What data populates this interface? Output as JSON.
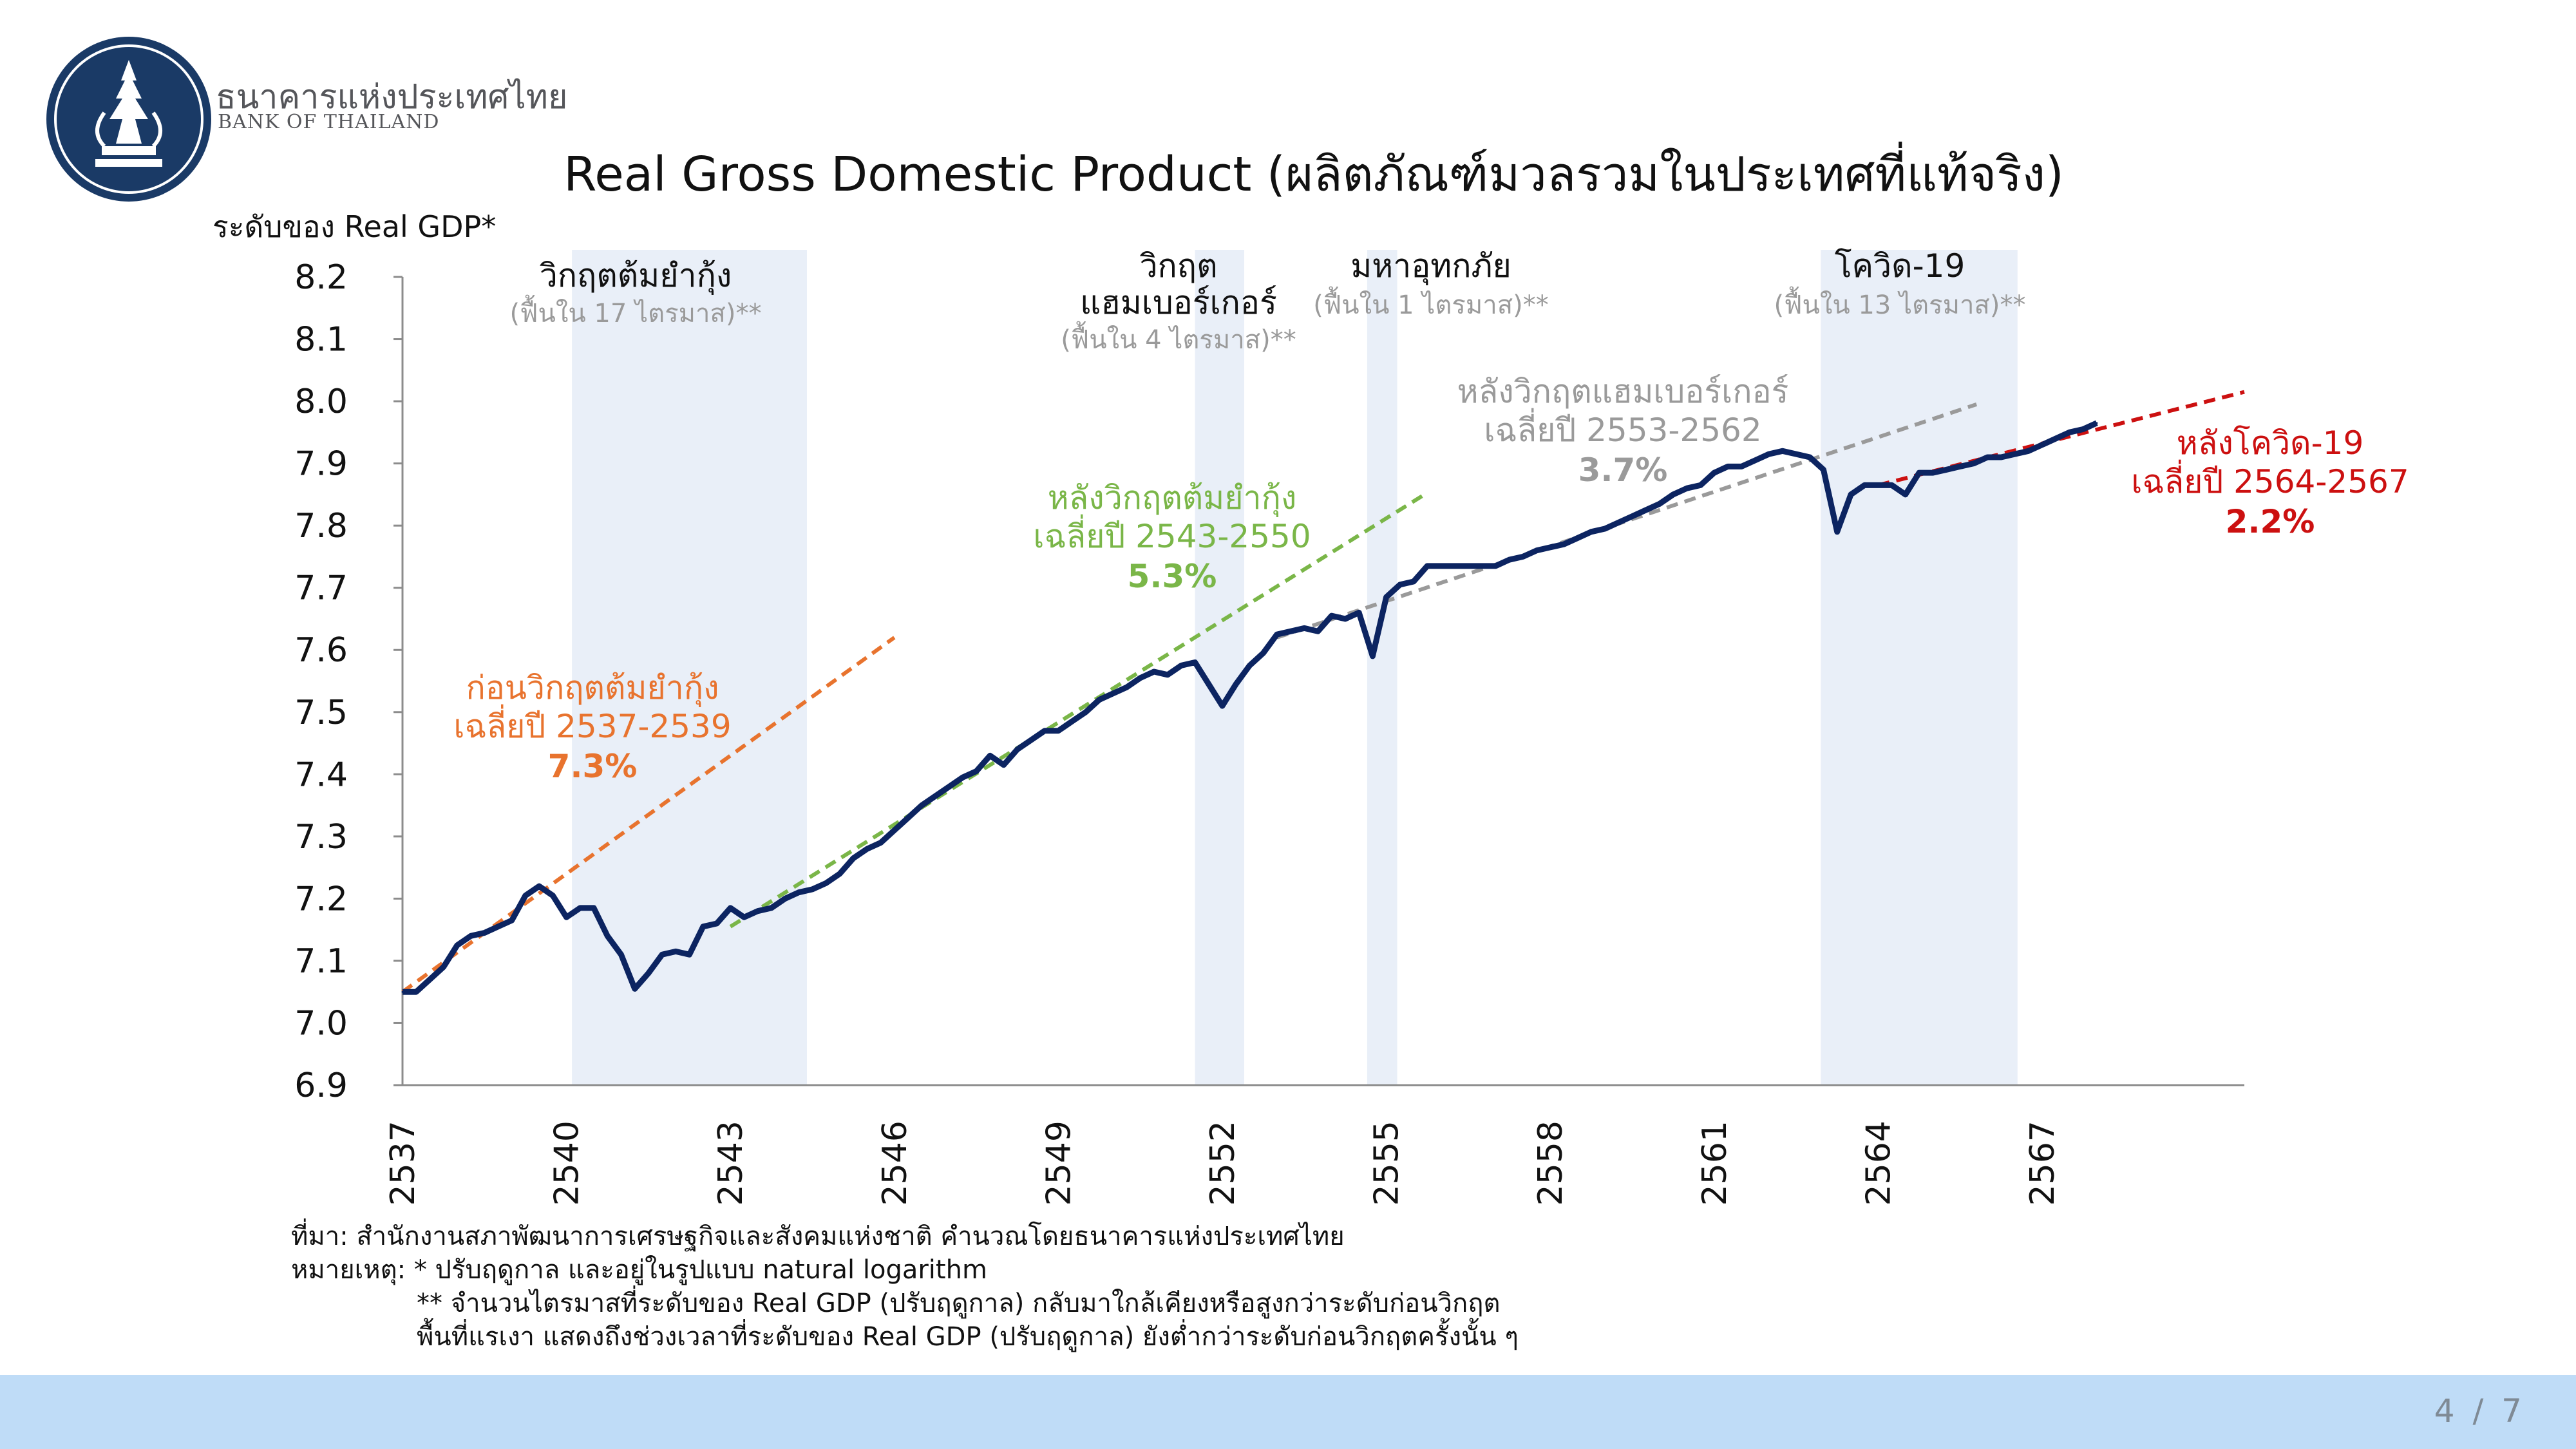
{
  "brand": {
    "name_th": "ธนาคารแห่งประเทศไทย",
    "name_en": "BANK OF THAILAND"
  },
  "colors": {
    "gdp_line": "#0c2461",
    "shade": "#e9eff8",
    "pre_crisis": "#e8732e",
    "post_tomyum": "#7ab648",
    "post_hamburger": "#9a9a9a",
    "post_covid": "#cc1010",
    "footer_band": "#bfdcf7"
  },
  "chart_data": {
    "type": "line",
    "title": "Real Gross Domestic Product (ผลิตภัณฑ์มวลรวมในประเทศที่แท้จริง)",
    "ylabel": "ระดับของ Real GDP*",
    "xlabel": "",
    "ylim": [
      6.9,
      8.2
    ],
    "xlim": [
      2537,
      2570.7
    ],
    "yticks": [
      "6.9",
      "7.0",
      "7.1",
      "7.2",
      "7.3",
      "7.4",
      "7.5",
      "7.6",
      "7.7",
      "7.8",
      "7.9",
      "8.0",
      "8.1",
      "8.2"
    ],
    "xticks": [
      "2537",
      "2540",
      "2543",
      "2546",
      "2549",
      "2552",
      "2555",
      "2558",
      "2561",
      "2564",
      "2567"
    ],
    "grid": false,
    "series": [
      {
        "role": "real-gdp",
        "points": [
          [
            2537.0,
            7.05
          ],
          [
            2537.25,
            7.05
          ],
          [
            2537.5,
            7.07
          ],
          [
            2537.75,
            7.09
          ],
          [
            2538.0,
            7.125
          ],
          [
            2538.25,
            7.14
          ],
          [
            2538.5,
            7.145
          ],
          [
            2538.75,
            7.155
          ],
          [
            2539.0,
            7.165
          ],
          [
            2539.25,
            7.205
          ],
          [
            2539.5,
            7.22
          ],
          [
            2539.75,
            7.205
          ],
          [
            2540.0,
            7.17
          ],
          [
            2540.25,
            7.185
          ],
          [
            2540.5,
            7.185
          ],
          [
            2540.75,
            7.14
          ],
          [
            2541.0,
            7.11
          ],
          [
            2541.25,
            7.055
          ],
          [
            2541.5,
            7.08
          ],
          [
            2541.75,
            7.11
          ],
          [
            2542.0,
            7.115
          ],
          [
            2542.25,
            7.11
          ],
          [
            2542.5,
            7.155
          ],
          [
            2542.75,
            7.16
          ],
          [
            2543.0,
            7.185
          ],
          [
            2543.25,
            7.17
          ],
          [
            2543.5,
            7.18
          ],
          [
            2543.75,
            7.185
          ],
          [
            2544.0,
            7.2
          ],
          [
            2544.25,
            7.21
          ],
          [
            2544.5,
            7.215
          ],
          [
            2544.75,
            7.225
          ],
          [
            2545.0,
            7.24
          ],
          [
            2545.25,
            7.265
          ],
          [
            2545.5,
            7.28
          ],
          [
            2545.75,
            7.29
          ],
          [
            2546.0,
            7.31
          ],
          [
            2546.25,
            7.33
          ],
          [
            2546.5,
            7.35
          ],
          [
            2546.75,
            7.365
          ],
          [
            2547.0,
            7.38
          ],
          [
            2547.25,
            7.395
          ],
          [
            2547.5,
            7.405
          ],
          [
            2547.75,
            7.43
          ],
          [
            2548.0,
            7.415
          ],
          [
            2548.25,
            7.44
          ],
          [
            2548.5,
            7.455
          ],
          [
            2548.75,
            7.47
          ],
          [
            2549.0,
            7.47
          ],
          [
            2549.25,
            7.485
          ],
          [
            2549.5,
            7.5
          ],
          [
            2549.75,
            7.52
          ],
          [
            2550.0,
            7.53
          ],
          [
            2550.25,
            7.54
          ],
          [
            2550.5,
            7.555
          ],
          [
            2550.75,
            7.565
          ],
          [
            2551.0,
            7.56
          ],
          [
            2551.25,
            7.575
          ],
          [
            2551.5,
            7.58
          ],
          [
            2551.75,
            7.545
          ],
          [
            2552.0,
            7.51
          ],
          [
            2552.25,
            7.545
          ],
          [
            2552.5,
            7.575
          ],
          [
            2552.75,
            7.595
          ],
          [
            2553.0,
            7.625
          ],
          [
            2553.25,
            7.63
          ],
          [
            2553.5,
            7.635
          ],
          [
            2553.75,
            7.63
          ],
          [
            2554.0,
            7.655
          ],
          [
            2554.25,
            7.65
          ],
          [
            2554.5,
            7.66
          ],
          [
            2554.75,
            7.59
          ],
          [
            2555.0,
            7.685
          ],
          [
            2555.25,
            7.705
          ],
          [
            2555.5,
            7.71
          ],
          [
            2555.75,
            7.735
          ],
          [
            2556.0,
            7.735
          ],
          [
            2556.25,
            7.735
          ],
          [
            2556.5,
            7.735
          ],
          [
            2556.75,
            7.735
          ],
          [
            2557.0,
            7.735
          ],
          [
            2557.25,
            7.745
          ],
          [
            2557.5,
            7.75
          ],
          [
            2557.75,
            7.76
          ],
          [
            2558.0,
            7.765
          ],
          [
            2558.25,
            7.77
          ],
          [
            2558.5,
            7.78
          ],
          [
            2558.75,
            7.79
          ],
          [
            2559.0,
            7.795
          ],
          [
            2559.25,
            7.805
          ],
          [
            2559.5,
            7.815
          ],
          [
            2559.75,
            7.825
          ],
          [
            2560.0,
            7.835
          ],
          [
            2560.25,
            7.85
          ],
          [
            2560.5,
            7.86
          ],
          [
            2560.75,
            7.865
          ],
          [
            2561.0,
            7.885
          ],
          [
            2561.25,
            7.895
          ],
          [
            2561.5,
            7.895
          ],
          [
            2561.75,
            7.905
          ],
          [
            2562.0,
            7.915
          ],
          [
            2562.25,
            7.92
          ],
          [
            2562.5,
            7.915
          ],
          [
            2562.75,
            7.91
          ],
          [
            2563.0,
            7.89
          ],
          [
            2563.25,
            7.79
          ],
          [
            2563.5,
            7.85
          ],
          [
            2563.75,
            7.865
          ],
          [
            2564.0,
            7.865
          ],
          [
            2564.25,
            7.865
          ],
          [
            2564.5,
            7.85
          ],
          [
            2564.75,
            7.885
          ],
          [
            2565.0,
            7.885
          ],
          [
            2565.25,
            7.89
          ],
          [
            2565.5,
            7.895
          ],
          [
            2565.75,
            7.9
          ],
          [
            2566.0,
            7.91
          ],
          [
            2566.25,
            7.91
          ],
          [
            2566.5,
            7.915
          ],
          [
            2566.75,
            7.92
          ],
          [
            2567.0,
            7.93
          ],
          [
            2567.25,
            7.94
          ],
          [
            2567.5,
            7.95
          ],
          [
            2567.75,
            7.955
          ],
          [
            2568.0,
            7.965
          ]
        ]
      }
    ],
    "trend_lines": [
      {
        "key": "pre_crisis",
        "from": [
          2537.0,
          7.05
        ],
        "to": [
          2546.0,
          7.62
        ]
      },
      {
        "key": "post_tomyum",
        "from": [
          2543.0,
          7.155
        ],
        "to": [
          2555.7,
          7.85
        ]
      },
      {
        "key": "post_hamburger",
        "from": [
          2553.0,
          7.62
        ],
        "to": [
          2565.8,
          7.995
        ]
      },
      {
        "key": "post_covid",
        "from": [
          2564.0,
          7.865
        ],
        "to": [
          2570.7,
          8.015
        ]
      }
    ],
    "shaded_periods": [
      {
        "label": "วิกฤตต้มยำกุ้ง",
        "note": "(ฟื้นใน 17 ไตรมาส)**",
        "start": 2540.1,
        "end": 2544.4
      },
      {
        "label": "วิกฤต",
        "label2": "แฮมเบอร์เกอร์",
        "note": "(ฟื้นใน 4 ไตรมาส)**",
        "start": 2551.5,
        "end": 2552.4
      },
      {
        "label": "มหาอุทกภัย",
        "note": "(ฟื้นใน 1 ไตรมาส)**",
        "start": 2554.65,
        "end": 2555.2
      },
      {
        "label": "โควิด-19",
        "note": "(ฟื้นใน 13 ไตรมาส)**",
        "start": 2562.95,
        "end": 2566.55
      }
    ],
    "annotations": {
      "pre_crisis": {
        "line1": "ก่อนวิกฤตต้มยำกุ้ง",
        "line2": "เฉลี่ยปี 2537-2539",
        "value": "7.3%"
      },
      "post_tomyum": {
        "line1": "หลังวิกฤตต้มยำกุ้ง",
        "line2": "เฉลี่ยปี 2543-2550",
        "value": "5.3%"
      },
      "post_hamburger": {
        "line1": "หลังวิกฤตแฮมเบอร์เกอร์",
        "line2": "เฉลี่ยปี 2553-2562",
        "value": "3.7%"
      },
      "post_covid": {
        "line1": "หลังโควิด-19",
        "line2": "เฉลี่ยปี 2564-2567",
        "value": "2.2%"
      }
    }
  },
  "notes": {
    "source": "ที่มา: สำนักงานสภาพัฒนาการเศรษฐกิจและสังคมแห่งชาติ คำนวณโดยธนาคารแห่งประเทศไทย",
    "note1": "หมายเหตุ: * ปรับฤดูกาล และอยู่ในรูปแบบ natural logarithm",
    "note2": "** จำนวนไตรมาสที่ระดับของ Real GDP (ปรับฤดูกาล) กลับมาใกล้เคียงหรือสูงกว่าระดับก่อนวิกฤต",
    "note3": "พื้นที่แรเงา แสดงถึงช่วงเวลาที่ระดับของ Real GDP (ปรับฤดูกาล) ยังต่ำกว่าระดับก่อนวิกฤตครั้งนั้น ๆ"
  },
  "page": {
    "number": "4 / 7"
  }
}
